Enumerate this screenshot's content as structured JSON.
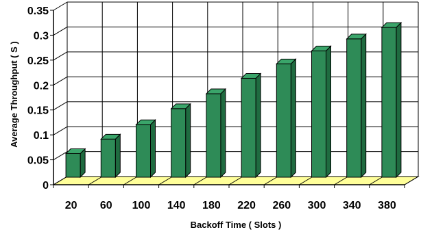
{
  "chart_data": {
    "type": "bar",
    "categories": [
      "20",
      "60",
      "100",
      "140",
      "180",
      "220",
      "260",
      "300",
      "340",
      "380"
    ],
    "values": [
      0.057,
      0.086,
      0.115,
      0.147,
      0.177,
      0.208,
      0.237,
      0.263,
      0.287,
      0.31
    ],
    "xlabel": "Backoff Time ( Slots )",
    "ylabel": "Average Throughput ( S )",
    "ylim": [
      0,
      0.35
    ],
    "yticks": [
      "0",
      "0.05",
      "0.1",
      "0.15",
      "0.2",
      "0.25",
      "0.3",
      "0.35"
    ],
    "grid": true,
    "style": "3d-bar",
    "bar_color": "#2e8b57",
    "bar_side_color": "#1f6b40",
    "bar_top_color": "#3aa56a",
    "floor_color": "#ffff99"
  }
}
